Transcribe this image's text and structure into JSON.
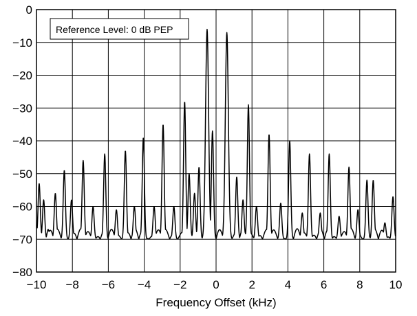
{
  "chart_data": {
    "type": "line",
    "title": "",
    "xlabel": "Frequency Offset (kHz)",
    "ylabel": "",
    "xlim": [
      -10,
      10
    ],
    "ylim": [
      -80,
      0
    ],
    "x_ticks": [
      -10,
      -8,
      -6,
      -4,
      -2,
      0,
      2,
      4,
      6,
      8,
      10
    ],
    "y_ticks": [
      0,
      -10,
      -20,
      -30,
      -40,
      -50,
      -60,
      -70,
      -80
    ],
    "grid": true,
    "annotation": "Reference Level: 0 dB PEP",
    "line_color": "#000000",
    "floor": -70,
    "series": [
      {
        "values": [
          [
            -10.0,
            -66
          ],
          [
            -9.85,
            -53
          ],
          [
            -9.6,
            -58
          ],
          [
            -9.35,
            -67
          ],
          [
            -8.95,
            -56
          ],
          [
            -8.45,
            -49
          ],
          [
            -8.05,
            -58
          ],
          [
            -7.4,
            -46
          ],
          [
            -6.85,
            -60
          ],
          [
            -6.2,
            -44
          ],
          [
            -5.55,
            -61
          ],
          [
            -5.05,
            -43
          ],
          [
            -4.55,
            -60
          ],
          [
            -4.05,
            -39
          ],
          [
            -3.45,
            -60
          ],
          [
            -2.95,
            -35
          ],
          [
            -2.35,
            -60
          ],
          [
            -1.75,
            -28
          ],
          [
            -1.5,
            -50
          ],
          [
            -1.2,
            -56
          ],
          [
            -0.95,
            -48
          ],
          [
            -0.5,
            -6
          ],
          [
            -0.2,
            -37
          ],
          [
            0.6,
            -7
          ],
          [
            1.15,
            -51
          ],
          [
            1.5,
            -58
          ],
          [
            1.8,
            -29
          ],
          [
            2.25,
            -60
          ],
          [
            2.95,
            -38
          ],
          [
            3.6,
            -59
          ],
          [
            4.1,
            -40
          ],
          [
            4.8,
            -62
          ],
          [
            5.2,
            -44
          ],
          [
            5.8,
            -62
          ],
          [
            6.3,
            -44
          ],
          [
            6.85,
            -63
          ],
          [
            7.4,
            -48
          ],
          [
            7.9,
            -61
          ],
          [
            8.4,
            -52
          ],
          [
            8.75,
            -52
          ],
          [
            9.4,
            -65
          ],
          [
            9.85,
            -57
          ]
        ]
      }
    ]
  }
}
